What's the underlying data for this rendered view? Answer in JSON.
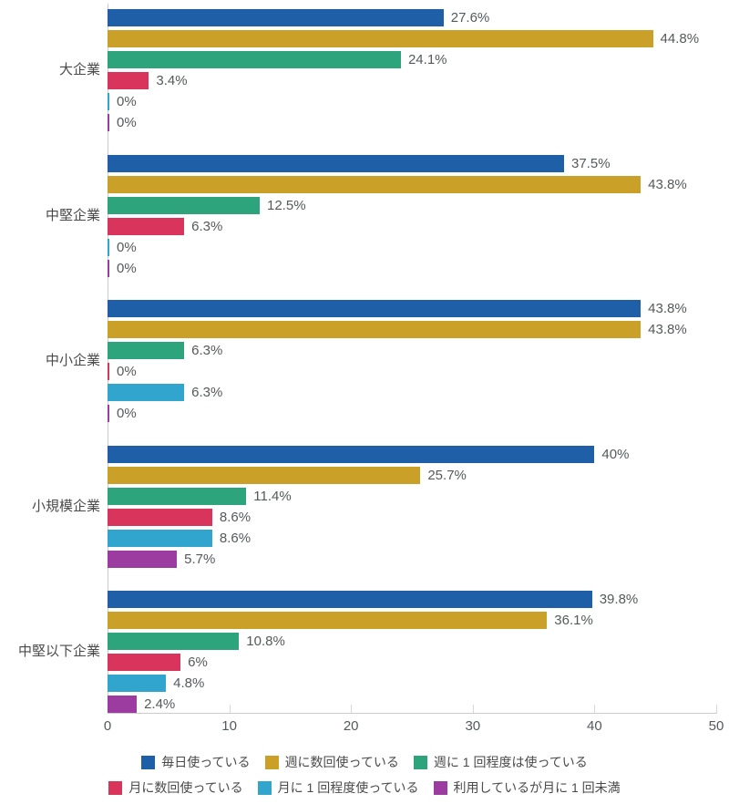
{
  "chart_data": {
    "type": "bar",
    "orientation": "horizontal",
    "title": "",
    "xlabel": "",
    "ylabel": "",
    "xlim": [
      0,
      50
    ],
    "xticks": [
      "0",
      "10",
      "20",
      "30",
      "40",
      "50"
    ],
    "grid": false,
    "legend_position": "bottom",
    "categories": [
      "大企業",
      "中堅企業",
      "中小企業",
      "小規模企業",
      "中堅以下企業"
    ],
    "series": [
      {
        "name": "毎日使っている",
        "color": "#1f5fa8",
        "values": [
          27.6,
          37.5,
          43.8,
          40,
          39.8
        ],
        "labels": [
          "27.6%",
          "37.5%",
          "43.8%",
          "40%",
          "39.8%"
        ]
      },
      {
        "name": "週に数回使っている",
        "color": "#cba028",
        "values": [
          44.8,
          43.8,
          43.8,
          25.7,
          36.1
        ],
        "labels": [
          "44.8%",
          "43.8%",
          "43.8%",
          "25.7%",
          "36.1%"
        ]
      },
      {
        "name": "週に 1 回程度は使っている",
        "color": "#2ea47c",
        "values": [
          24.1,
          12.5,
          6.3,
          11.4,
          10.8
        ],
        "labels": [
          "24.1%",
          "12.5%",
          "6.3%",
          "11.4%",
          "10.8%"
        ]
      },
      {
        "name": "月に数回使っている",
        "color": "#d9345b",
        "values": [
          3.4,
          6.3,
          0,
          8.6,
          6
        ],
        "labels": [
          "3.4%",
          "6.3%",
          "0%",
          "8.6%",
          "6%"
        ]
      },
      {
        "name": "月に 1 回程度使っている",
        "color": "#31a5ce",
        "values": [
          0,
          0,
          6.3,
          8.6,
          4.8
        ],
        "labels": [
          "0%",
          "0%",
          "6.3%",
          "8.6%",
          "4.8%"
        ]
      },
      {
        "name": "利用しているが月に 1 回未満",
        "color": "#9c3ca1",
        "values": [
          0,
          0,
          0,
          5.7,
          2.4
        ],
        "labels": [
          "0%",
          "0%",
          "0%",
          "5.7%",
          "2.4%"
        ]
      }
    ]
  }
}
